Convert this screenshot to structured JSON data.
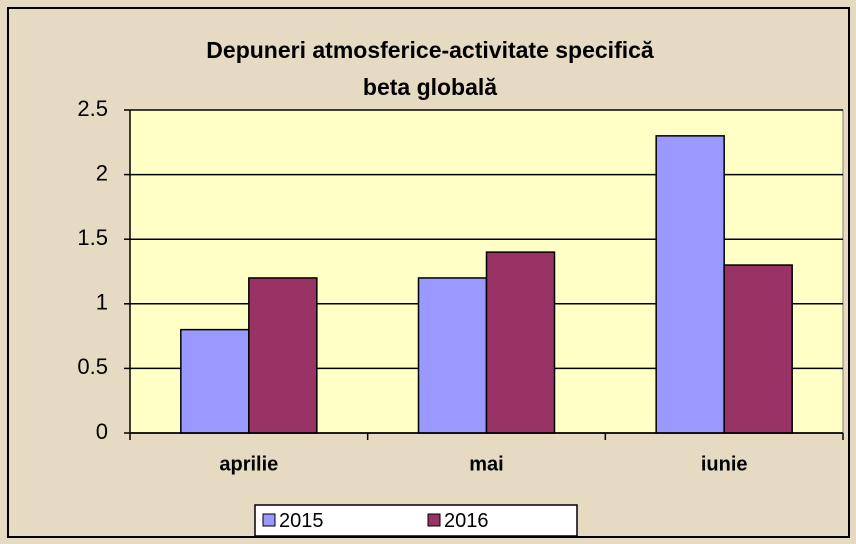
{
  "chart_data": {
    "type": "bar",
    "title": [
      "Depuneri atmosferice-activitate  specifică",
      "beta globală"
    ],
    "categories": [
      "aprilie",
      "mai",
      "iunie"
    ],
    "series": [
      {
        "name": "2015",
        "color": "#9999ff",
        "values": [
          0.8,
          1.2,
          2.3
        ]
      },
      {
        "name": "2016",
        "color": "#993366",
        "values": [
          1.2,
          1.4,
          1.3
        ]
      }
    ],
    "ylim": [
      0,
      2.5
    ],
    "yticks": [
      0,
      0.5,
      1,
      1.5,
      2,
      2.5
    ],
    "grid": true,
    "legend": "bottom"
  }
}
